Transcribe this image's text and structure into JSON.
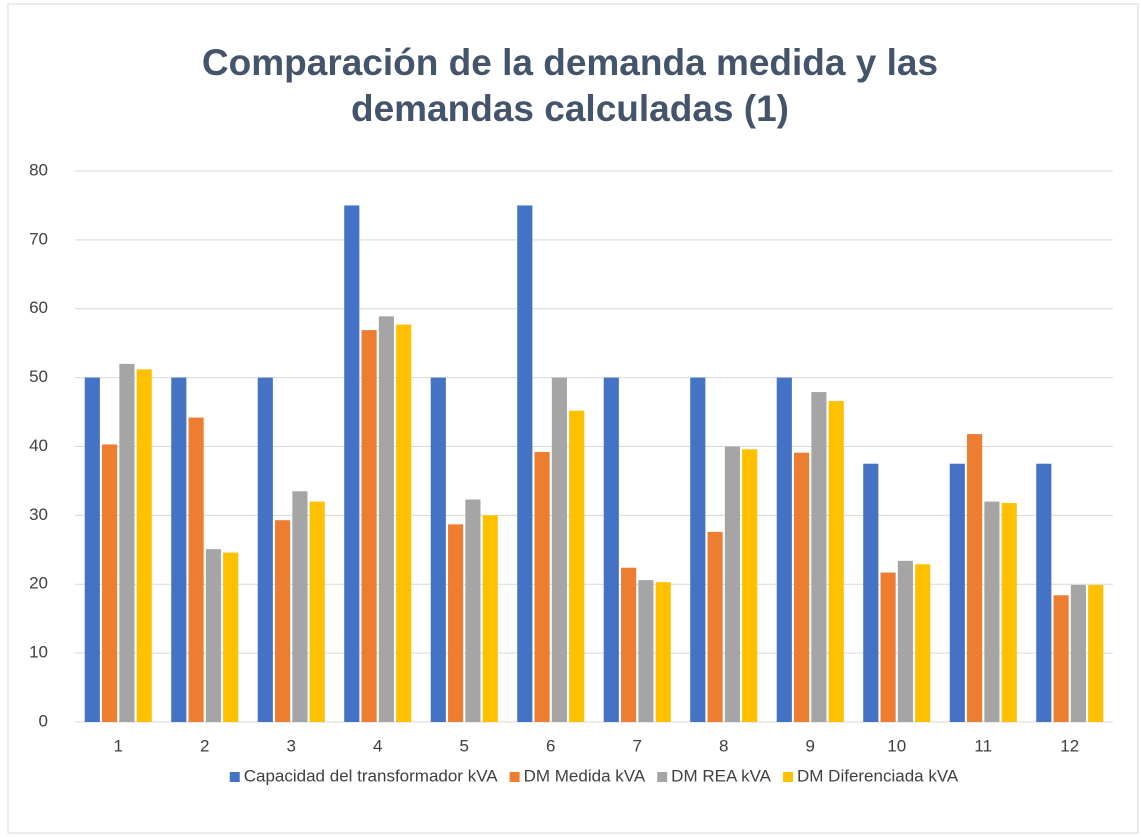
{
  "chart_data": {
    "type": "bar",
    "title": "Comparación de la demanda medida y las demandas calculadas (1)",
    "categories": [
      "1",
      "2",
      "3",
      "4",
      "5",
      "6",
      "7",
      "8",
      "9",
      "10",
      "11",
      "12"
    ],
    "series": [
      {
        "name": "Capacidad del transformador kVA",
        "color": "#4472c4",
        "values": [
          50,
          50,
          50,
          75,
          50,
          75,
          50,
          50,
          50,
          37.5,
          37.5,
          37.5
        ]
      },
      {
        "name": "DM Medida kVA",
        "color": "#ed7d31",
        "values": [
          40.3,
          44.2,
          29.3,
          56.9,
          28.7,
          39.2,
          22.4,
          27.6,
          39.1,
          21.7,
          41.8,
          18.4
        ]
      },
      {
        "name": "DM REA kVA",
        "color": "#a5a5a5",
        "values": [
          52,
          25.1,
          33.5,
          58.9,
          32.3,
          50,
          20.6,
          40,
          47.9,
          23.4,
          32,
          19.9
        ]
      },
      {
        "name": "DM Diferenciada kVA",
        "color": "#ffc000",
        "values": [
          51.2,
          24.6,
          32,
          57.7,
          30,
          45.2,
          20.3,
          39.6,
          46.6,
          22.9,
          31.8,
          19.9
        ]
      }
    ],
    "ylim": [
      0,
      80
    ],
    "yticks": [
      0,
      10,
      20,
      30,
      40,
      50,
      60,
      70,
      80
    ],
    "grid": true,
    "legend": "bottom"
  }
}
